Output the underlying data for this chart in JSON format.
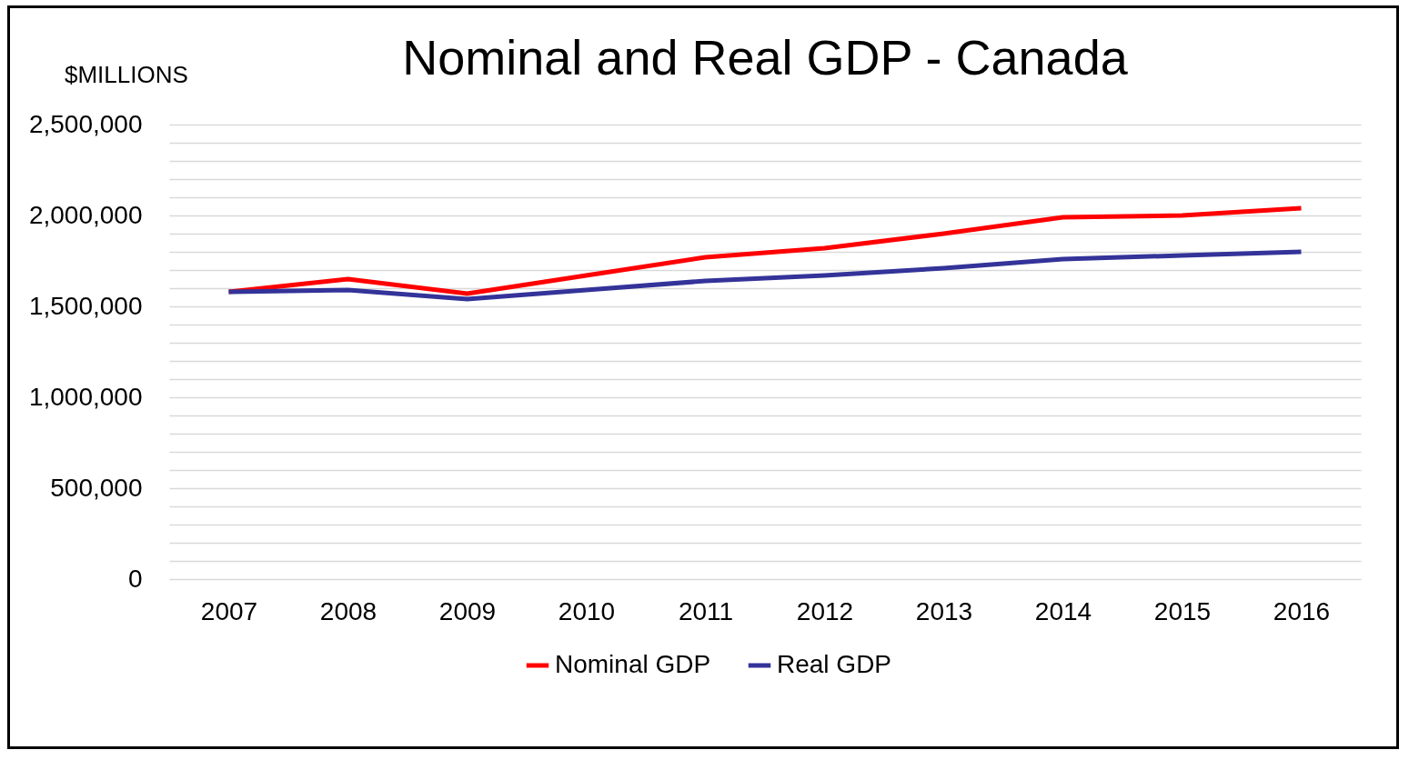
{
  "chart_data": {
    "type": "line",
    "title": "Nominal and Real GDP - Canada",
    "ylabel": "$MILLIONS",
    "categories": [
      "2007",
      "2008",
      "2009",
      "2010",
      "2011",
      "2012",
      "2013",
      "2014",
      "2015",
      "2016"
    ],
    "series": [
      {
        "name": "Nominal GDP",
        "color": "#ff0000",
        "values": [
          1580000,
          1650000,
          1570000,
          1670000,
          1770000,
          1820000,
          1900000,
          1990000,
          2000000,
          2040000
        ]
      },
      {
        "name": "Real GDP",
        "color": "#333399",
        "values": [
          1580000,
          1590000,
          1540000,
          1590000,
          1640000,
          1670000,
          1710000,
          1760000,
          1780000,
          1800000
        ]
      }
    ],
    "ylim": [
      0,
      2500000
    ],
    "yticks": [
      0,
      {
        "value": 100000,
        "label": null
      },
      {
        "value": 200000,
        "label": null
      },
      {
        "value": 300000,
        "label": null
      },
      {
        "value": 400000,
        "label": null
      },
      {
        "value": 500000,
        "label": "500,000"
      },
      {
        "value": 600000,
        "label": null
      },
      {
        "value": 700000,
        "label": null
      },
      {
        "value": 800000,
        "label": null
      },
      {
        "value": 900000,
        "label": null
      },
      {
        "value": 1000000,
        "label": "1,000,000"
      },
      {
        "value": 1100000,
        "label": null
      },
      {
        "value": 1200000,
        "label": null
      },
      {
        "value": 1300000,
        "label": null
      },
      {
        "value": 1400000,
        "label": null
      },
      {
        "value": 1500000,
        "label": "1,500,000"
      },
      {
        "value": 1600000,
        "label": null
      },
      {
        "value": 1700000,
        "label": null
      },
      {
        "value": 1800000,
        "label": null
      },
      {
        "value": 1900000,
        "label": null
      },
      {
        "value": 2000000,
        "label": "2,000,000"
      },
      {
        "value": 2100000,
        "label": null
      },
      {
        "value": 2200000,
        "label": null
      },
      {
        "value": 2300000,
        "label": null
      },
      {
        "value": 2400000,
        "label": null
      },
      {
        "value": 2500000,
        "label": "2,500,000"
      }
    ],
    "grid": "y",
    "legend": "bottom",
    "marker": "none",
    "line_style": "solid"
  }
}
